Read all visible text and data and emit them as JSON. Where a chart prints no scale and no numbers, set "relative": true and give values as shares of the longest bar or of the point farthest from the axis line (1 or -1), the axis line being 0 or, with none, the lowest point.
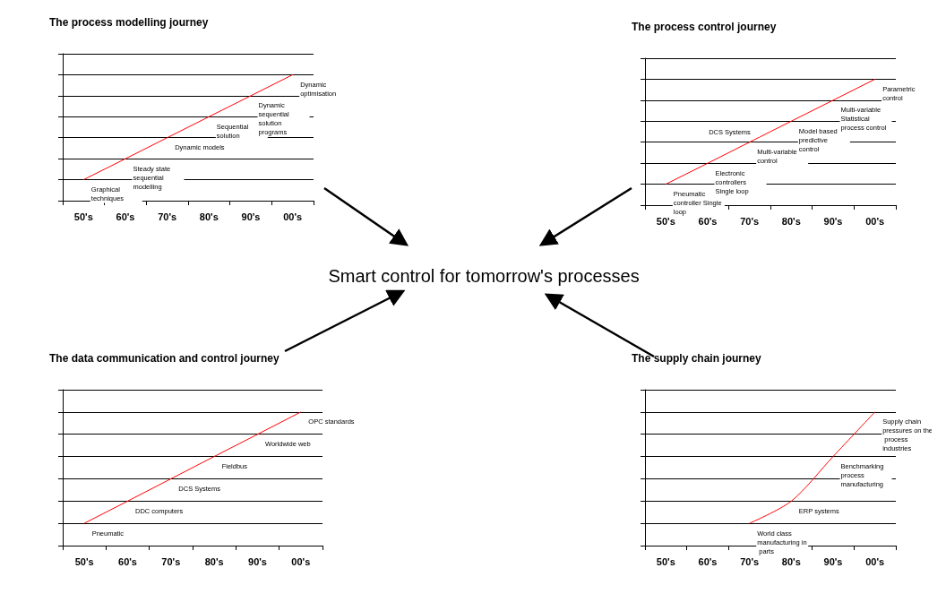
{
  "chart_data": [
    {
      "type": "line",
      "title": "The process modelling journey",
      "categories": [
        "50's",
        "60's",
        "70's",
        "80's",
        "90's",
        "00's"
      ],
      "relative": true,
      "grid": "y",
      "marker": "none",
      "series": [
        {
          "color": "#ff0000",
          "values": [
            0.167,
            0.333,
            0.5,
            0.667,
            0.833,
            1
          ]
        }
      ],
      "annotations": [
        {
          "text": "Graphical techniques",
          "x": "50's",
          "y": 0.167
        },
        {
          "text": "Steady state sequential modelling",
          "x": "60's",
          "y": 0.333
        },
        {
          "text": "Dynamic models",
          "x": "70's",
          "y": 0.5
        },
        {
          "text": "Sequential solution",
          "x": "80's",
          "y": 0.667
        },
        {
          "text": "Dynamic sequential solution programs",
          "x": "90's",
          "y": 0.833
        },
        {
          "text": "Dynamic optimisation",
          "x": "00's",
          "y": 1
        }
      ]
    },
    {
      "type": "line",
      "title": "The process control journey",
      "categories": [
        "50's",
        "60's",
        "70's",
        "80's",
        "90's",
        "00's"
      ],
      "relative": true,
      "grid": "y",
      "marker": "none",
      "series": [
        {
          "color": "#ff0000",
          "values": [
            0.167,
            0.333,
            0.5,
            0.667,
            0.833,
            1
          ]
        }
      ],
      "annotations": [
        {
          "text": "Pneumatic controller Single loop",
          "x": "50's",
          "y": 0.167
        },
        {
          "text": "Electronic controllers Single loop",
          "x": "60's",
          "y": 0.333
        },
        {
          "text": "Multi-variable control",
          "x": "70's",
          "y": 0.5
        },
        {
          "text": "DCS Systems",
          "x": "70's",
          "y": 0.5
        },
        {
          "text": "Model based predictive control",
          "x": "80's",
          "y": 0.667
        },
        {
          "text": "Multi-variable Statistical process control",
          "x": "90's",
          "y": 0.833
        },
        {
          "text": "Parametric control",
          "x": "00's",
          "y": 1
        }
      ]
    },
    {
      "type": "line",
      "title": "The data communication and control journey",
      "categories": [
        "50's",
        "60's",
        "70's",
        "80's",
        "90's",
        "00's"
      ],
      "relative": true,
      "grid": "y",
      "marker": "none",
      "series": [
        {
          "color": "#ff0000",
          "values": [
            0.167,
            0.333,
            0.5,
            0.667,
            0.833,
            1
          ]
        }
      ],
      "annotations": [
        {
          "text": "Pneumatic",
          "x": "50's",
          "y": 0.167
        },
        {
          "text": "DDC computers",
          "x": "60's",
          "y": 0.333
        },
        {
          "text": "DCS Systems",
          "x": "70's",
          "y": 0.5
        },
        {
          "text": "Fieldbus",
          "x": "80's",
          "y": 0.667
        },
        {
          "text": "Worldwide web",
          "x": "90's",
          "y": 0.833
        },
        {
          "text": "OPC standards",
          "x": "00's",
          "y": 1
        }
      ]
    },
    {
      "type": "line",
      "title": "The supply chain journey",
      "categories": [
        "50's",
        "60's",
        "70's",
        "80's",
        "90's",
        "00's"
      ],
      "relative": true,
      "grid": "y",
      "marker": "none",
      "series": [
        {
          "color": "#ff0000",
          "values": [
            null,
            null,
            0.167,
            0.333,
            0.667,
            1
          ]
        }
      ],
      "annotations": [
        {
          "text": "World class manufacturing in parts",
          "x": "70's",
          "y": 0.167
        },
        {
          "text": "ERP systems",
          "x": "80's",
          "y": 0.333
        },
        {
          "text": "Benchmarking process manufacturing",
          "x": "90's",
          "y": 0.667
        },
        {
          "text": "Supply chain pressures on the process industries",
          "x": "00's",
          "y": 1
        }
      ]
    },
    {
      "type": "other",
      "title": "Smart control for tomorrow's processes"
    }
  ]
}
